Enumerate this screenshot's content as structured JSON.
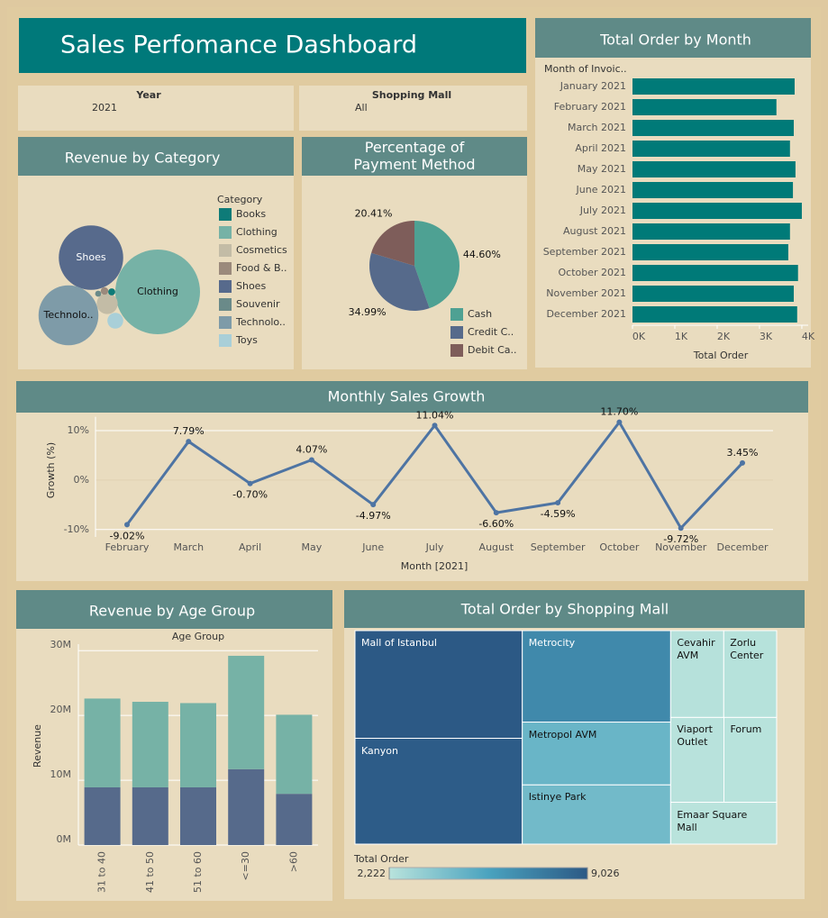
{
  "title": "Sales Perfomance Dashboard",
  "filters": [
    {
      "label": "Year",
      "value": "2021"
    },
    {
      "label": "Shopping Mall",
      "value": "All"
    }
  ],
  "chart_data": [
    {
      "type": "bubble",
      "title": "Revenue by Category",
      "legend_title": "Category",
      "categories": [
        "Books",
        "Clothing",
        "Cosmetics",
        "Food & B..",
        "Shoes",
        "Souvenir",
        "Technolo..",
        "Toys"
      ],
      "values": [
        800000,
        114000000,
        7000000,
        900000,
        66000000,
        600000,
        57000000,
        4000000
      ],
      "colors": [
        "#0e7b78",
        "#76b2a6",
        "#c3bca6",
        "#9b8a7c",
        "#576a8c",
        "#6a8a89",
        "#7e9ba8",
        "#a9cfd8"
      ]
    },
    {
      "type": "pie",
      "title": "Percentage of Payment Method",
      "categories": [
        "Cash",
        "Credit C..",
        "Debit Ca.."
      ],
      "values": [
        44.6,
        34.99,
        20.41
      ],
      "value_labels": [
        "44.60%",
        "34.99%",
        "20.41%"
      ],
      "colors": [
        "#4ea193",
        "#566a8b",
        "#7e5d5a"
      ]
    },
    {
      "type": "hbar",
      "title": "Total Order by Month",
      "y_label": "Month of Invoic..",
      "x_label": "Total Order",
      "categories": [
        "January 2021",
        "February 2021",
        "March 2021",
        "April 2021",
        "May 2021",
        "June 2021",
        "July 2021",
        "August 2021",
        "September 2021",
        "October 2021",
        "November 2021",
        "December 2021"
      ],
      "values": [
        3830,
        3400,
        3810,
        3720,
        3850,
        3790,
        4000,
        3720,
        3680,
        3910,
        3810,
        3890
      ],
      "color": "#007a78",
      "xlim": [
        0,
        4150
      ],
      "xticks": [
        {
          "value": 0,
          "label": "0K"
        },
        {
          "value": 1000,
          "label": "1K"
        },
        {
          "value": 2000,
          "label": "2K"
        },
        {
          "value": 3000,
          "label": "3K"
        },
        {
          "value": 4000,
          "label": "4K"
        }
      ]
    },
    {
      "type": "line",
      "title": "Monthly Sales Growth",
      "x_label": "Month [2021]",
      "y_label": "Growth (%)",
      "categories": [
        "February",
        "March",
        "April",
        "May",
        "June",
        "July",
        "August",
        "September",
        "October",
        "November",
        "December"
      ],
      "values": [
        -9.02,
        7.79,
        -0.7,
        4.07,
        -4.97,
        11.04,
        -6.6,
        -4.59,
        11.7,
        -9.72,
        3.45
      ],
      "value_labels": [
        "-9.02%",
        "7.79%",
        "-0.70%",
        "4.07%",
        "-4.97%",
        "11.04%",
        "-6.60%",
        "-4.59%",
        "11.70%",
        "-9.72%",
        "3.45%"
      ],
      "color": "#4e74a3",
      "ylim": [
        -11.5,
        12.8
      ],
      "yticks": [
        {
          "value": 10,
          "label": "10%"
        },
        {
          "value": 0,
          "label": "0%"
        },
        {
          "value": -10,
          "label": "-10%"
        }
      ],
      "grid": true
    },
    {
      "type": "stacked_bar",
      "title": "Revenue by Age Group",
      "x_label": "Age Group",
      "y_label": "Revenue",
      "categories": [
        "31 to 40",
        "41 to 50",
        "51 to 60",
        "<=30",
        ">60"
      ],
      "series": [
        {
          "color": "#566a8b",
          "values": [
            8900000,
            8900000,
            8900000,
            11700000,
            7900000
          ]
        },
        {
          "color": "#76b2a6",
          "values": [
            13700000,
            13200000,
            13000000,
            17500000,
            12200000
          ]
        }
      ],
      "ylim": [
        0,
        31000000
      ],
      "yticks": [
        {
          "value": 0,
          "label": "0M"
        },
        {
          "value": 10000000,
          "label": "10M"
        },
        {
          "value": 20000000,
          "label": "20M"
        },
        {
          "value": 30000000,
          "label": "30M"
        }
      ],
      "grid": true
    },
    {
      "type": "treemap",
      "title": "Total Order by Shopping Mall",
      "legend_title": "Total Order",
      "categories": [
        "Mall of Istanbul",
        "Kanyon",
        "Metrocity",
        "Metropol AVM",
        "Istinye Park",
        "Cevahir AVM",
        "Zorlu Center",
        "Viaport Outlet",
        "Forum",
        "Emaar Square Mall"
      ],
      "values": [
        9026,
        8870,
        6800,
        4670,
        4400,
        2310,
        2300,
        2265,
        2240,
        2222
      ],
      "colorscale": [
        "#b9e3dc",
        "#4aa3bf",
        "#2c5985"
      ],
      "colorticks": [
        {
          "value": 2222,
          "label": "2,222"
        },
        {
          "value": 9026,
          "label": "9,026"
        }
      ]
    }
  ]
}
